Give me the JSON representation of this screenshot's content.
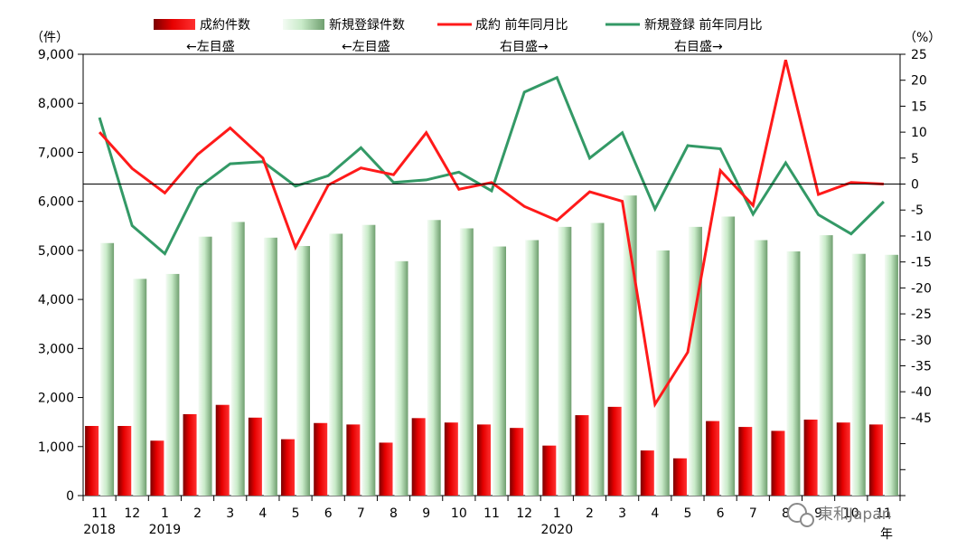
{
  "chart_data": {
    "type": "bar",
    "categories": [
      "11",
      "12",
      "1",
      "2",
      "3",
      "4",
      "5",
      "6",
      "7",
      "8",
      "9",
      "10",
      "11",
      "12",
      "1",
      "2",
      "3",
      "4",
      "5",
      "6",
      "7",
      "8",
      "9",
      "10",
      "11"
    ],
    "year_labels": [
      {
        "index": 0,
        "label": "2018"
      },
      {
        "index": 2,
        "label": "2019"
      },
      {
        "index": 14,
        "label": "2020"
      }
    ],
    "left_axis": {
      "unit": "（件）",
      "ylim": [
        0,
        9000
      ],
      "ticks": [
        "0",
        "1,000",
        "2,000",
        "3,000",
        "4,000",
        "5,000",
        "6,000",
        "7,000",
        "8,000",
        "9,000"
      ]
    },
    "right_axis": {
      "unit": "（%）",
      "ylim": [
        -60,
        25
      ],
      "ticks": [
        "25",
        "20",
        "15",
        "10",
        "5",
        "0",
        "-5",
        "-10",
        "-15",
        "-20",
        "-25",
        "-30",
        "-35",
        "-40",
        "-45"
      ]
    },
    "x_unit": "年",
    "series": [
      {
        "name": "成約件数",
        "axis": "left",
        "type": "bar",
        "color": "#cc0000",
        "legend_note": "←左目盛",
        "values": [
          1420,
          1420,
          1120,
          1660,
          1850,
          1590,
          1150,
          1480,
          1450,
          1080,
          1580,
          1490,
          1450,
          1380,
          1020,
          1640,
          1810,
          920,
          760,
          1520,
          1400,
          1320,
          1550,
          1490,
          1450
        ]
      },
      {
        "name": "新規登録件数",
        "axis": "left",
        "type": "bar",
        "color": "#a8dca8",
        "legend_note": "←左目盛",
        "values": [
          5150,
          4420,
          4520,
          5280,
          5580,
          5260,
          5090,
          5340,
          5520,
          4780,
          5620,
          5450,
          5080,
          5210,
          5480,
          5560,
          6120,
          5000,
          5480,
          5690,
          5210,
          4980,
          5310,
          4930,
          4910
        ]
      },
      {
        "name": "成約 前年同月比",
        "axis": "right",
        "type": "line",
        "color": "#ff1a1a",
        "legend_note": "右目盛→",
        "values": [
          10,
          3,
          -1.7,
          5.7,
          10.8,
          5,
          -12.2,
          -0.2,
          3.1,
          1.8,
          9.9,
          -1,
          0.3,
          -4.3,
          -7,
          -1.5,
          -3.3,
          -42.4,
          -32.4,
          2.6,
          -4.1,
          23.9,
          -2,
          0.3,
          0
        ]
      },
      {
        "name": "新規登録 前年同月比",
        "axis": "right",
        "type": "line",
        "color": "#339966",
        "legend_note": "右目盛→",
        "values": [
          12.8,
          -8,
          -13.4,
          -0.8,
          3.9,
          4.3,
          -0.4,
          1.6,
          7,
          0.3,
          0.8,
          2.3,
          -1.3,
          17.7,
          20.5,
          5,
          9.9,
          -4.8,
          7.4,
          6.8,
          -5.8,
          4.1,
          -5.9,
          -9.6,
          -3.4
        ]
      }
    ],
    "watermark": "東和Japan"
  }
}
